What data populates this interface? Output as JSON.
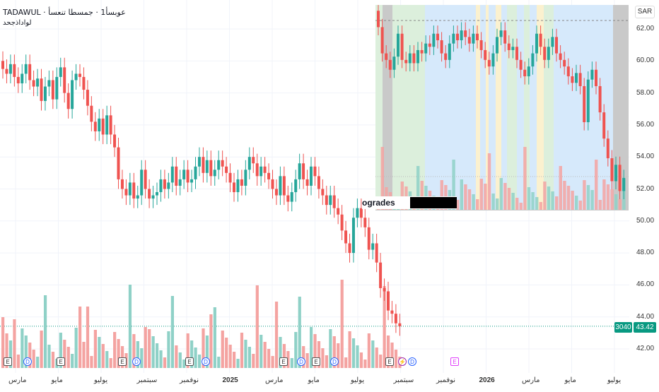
{
  "header": {
    "title": "TADAWUL · عوبسأ1 · جمسطا تنعسأ",
    "subtitle": "لواداذجحد"
  },
  "price_axis": {
    "currency": "SAR",
    "labels": [
      "62.00",
      "60.00",
      "58.00",
      "56.00",
      "54.00",
      "52.00",
      "50.00",
      "48.00",
      "46.00",
      "44.00",
      "42.00"
    ],
    "last_price": "43.42",
    "volume_badge": "3040"
  },
  "time_axis": {
    "labels": [
      {
        "text": "مارس",
        "year": false
      },
      {
        "text": "مايو",
        "year": false
      },
      {
        "text": "يوليو",
        "year": false
      },
      {
        "text": "سبتمبر",
        "year": false
      },
      {
        "text": "نوفمبر",
        "year": false
      },
      {
        "text": "2025",
        "year": true
      },
      {
        "text": "مارس",
        "year": false
      },
      {
        "text": "مايو",
        "year": false
      },
      {
        "text": "يوليو",
        "year": false
      },
      {
        "text": "سبتمبر",
        "year": false
      },
      {
        "text": "نوفمبر",
        "year": false
      },
      {
        "text": "2026",
        "year": true
      },
      {
        "text": "مارس",
        "year": false
      },
      {
        "text": "مايو",
        "year": false
      },
      {
        "text": "يوليو",
        "year": false
      }
    ]
  },
  "inset": {
    "caption": "ogrades"
  },
  "events": [
    {
      "type": "E",
      "glyph": "E"
    },
    {
      "type": "D",
      "glyph": "D"
    },
    {
      "type": "E",
      "glyph": "E"
    },
    {
      "type": "E",
      "glyph": "E"
    },
    {
      "type": "D",
      "glyph": "D"
    },
    {
      "type": "E",
      "glyph": "E"
    },
    {
      "type": "D",
      "glyph": "D"
    },
    {
      "type": "E",
      "glyph": "E"
    },
    {
      "type": "D",
      "glyph": "D"
    },
    {
      "type": "E",
      "glyph": "E"
    },
    {
      "type": "D",
      "glyph": "D"
    },
    {
      "type": "E",
      "glyph": "E"
    },
    {
      "type": "S",
      "glyph": "⚡"
    },
    {
      "type": "D",
      "glyph": "D"
    },
    {
      "type": "F",
      "glyph": "E"
    }
  ],
  "colors": {
    "up": "#26a69a",
    "down": "#ef5350",
    "vol_up": "#8fd1c7",
    "vol_down": "#f4a3a1",
    "grid": "#f0f3fa",
    "band_green": "#dcefdc",
    "band_blue": "#d6e9fb",
    "band_yellow": "#fbf1cf",
    "band_gray": "#c9c9c9"
  },
  "chart_data": {
    "type": "candlestick",
    "series_main": [
      {
        "o": 60.0,
        "c": 59.5
      },
      {
        "o": 59.5,
        "c": 59.2
      },
      {
        "o": 59.2,
        "c": 59.8
      },
      {
        "o": 59.8,
        "c": 59.0
      },
      {
        "o": 59.0,
        "c": 58.6
      },
      {
        "o": 58.6,
        "c": 59.2
      },
      {
        "o": 59.2,
        "c": 59.8
      },
      {
        "o": 59.8,
        "c": 58.8
      },
      {
        "o": 58.8,
        "c": 58.4
      },
      {
        "o": 58.4,
        "c": 58.9
      },
      {
        "o": 58.9,
        "c": 57.5
      },
      {
        "o": 57.5,
        "c": 58.4
      },
      {
        "o": 58.4,
        "c": 58.8
      },
      {
        "o": 58.8,
        "c": 57.6
      },
      {
        "o": 57.6,
        "c": 59.0
      },
      {
        "o": 59.0,
        "c": 59.6
      },
      {
        "o": 59.6,
        "c": 58.0
      },
      {
        "o": 58.0,
        "c": 57.0
      },
      {
        "o": 57.0,
        "c": 58.8
      },
      {
        "o": 58.8,
        "c": 59.2
      },
      {
        "o": 59.2,
        "c": 59.0
      },
      {
        "o": 59.0,
        "c": 58.2
      },
      {
        "o": 58.2,
        "c": 57.2
      },
      {
        "o": 57.2,
        "c": 56.2
      },
      {
        "o": 56.2,
        "c": 55.6
      },
      {
        "o": 55.6,
        "c": 56.4
      },
      {
        "o": 56.4,
        "c": 55.4
      },
      {
        "o": 55.4,
        "c": 56.6
      },
      {
        "o": 56.6,
        "c": 55.4
      },
      {
        "o": 55.4,
        "c": 54.6
      },
      {
        "o": 54.6,
        "c": 52.6
      },
      {
        "o": 52.6,
        "c": 52.0
      },
      {
        "o": 52.0,
        "c": 51.6
      },
      {
        "o": 51.6,
        "c": 52.4
      },
      {
        "o": 52.4,
        "c": 51.4
      },
      {
        "o": 51.4,
        "c": 51.6
      },
      {
        "o": 51.6,
        "c": 53.2
      },
      {
        "o": 53.2,
        "c": 52.0
      },
      {
        "o": 52.0,
        "c": 51.4
      },
      {
        "o": 51.4,
        "c": 51.6
      },
      {
        "o": 51.6,
        "c": 51.8
      },
      {
        "o": 51.8,
        "c": 52.6
      },
      {
        "o": 52.6,
        "c": 52.0
      },
      {
        "o": 52.0,
        "c": 52.4
      },
      {
        "o": 52.4,
        "c": 53.4
      },
      {
        "o": 53.4,
        "c": 52.2
      },
      {
        "o": 52.2,
        "c": 52.6
      },
      {
        "o": 52.6,
        "c": 53.2
      },
      {
        "o": 53.2,
        "c": 52.4
      },
      {
        "o": 52.4,
        "c": 52.6
      },
      {
        "o": 52.6,
        "c": 53.4
      },
      {
        "o": 53.4,
        "c": 54.0
      },
      {
        "o": 54.0,
        "c": 53.0
      },
      {
        "o": 53.0,
        "c": 53.8
      },
      {
        "o": 53.8,
        "c": 52.8
      },
      {
        "o": 52.8,
        "c": 53.2
      },
      {
        "o": 53.2,
        "c": 53.8
      },
      {
        "o": 53.8,
        "c": 53.4
      },
      {
        "o": 53.4,
        "c": 53.0
      },
      {
        "o": 53.0,
        "c": 52.4
      },
      {
        "o": 52.4,
        "c": 51.8
      },
      {
        "o": 51.8,
        "c": 52.6
      },
      {
        "o": 52.6,
        "c": 52.2
      },
      {
        "o": 52.2,
        "c": 53.2
      },
      {
        "o": 53.2,
        "c": 54.0
      },
      {
        "o": 54.0,
        "c": 53.6
      },
      {
        "o": 53.6,
        "c": 52.8
      },
      {
        "o": 52.8,
        "c": 53.4
      },
      {
        "o": 53.4,
        "c": 53.0
      },
      {
        "o": 53.0,
        "c": 52.6
      },
      {
        "o": 52.6,
        "c": 52.0
      },
      {
        "o": 52.0,
        "c": 51.6
      },
      {
        "o": 51.6,
        "c": 52.8
      },
      {
        "o": 52.8,
        "c": 51.6
      },
      {
        "o": 51.6,
        "c": 51.2
      },
      {
        "o": 51.2,
        "c": 51.8
      },
      {
        "o": 51.8,
        "c": 52.6
      },
      {
        "o": 52.6,
        "c": 53.6
      },
      {
        "o": 53.6,
        "c": 52.6
      },
      {
        "o": 52.6,
        "c": 52.2
      },
      {
        "o": 52.2,
        "c": 53.4
      },
      {
        "o": 53.4,
        "c": 52.8
      },
      {
        "o": 52.8,
        "c": 52.0
      },
      {
        "o": 52.0,
        "c": 51.6
      },
      {
        "o": 51.6,
        "c": 51.0
      },
      {
        "o": 51.0,
        "c": 51.6
      },
      {
        "o": 51.6,
        "c": 50.8
      },
      {
        "o": 50.8,
        "c": 50.4
      },
      {
        "o": 50.4,
        "c": 49.4
      },
      {
        "o": 49.4,
        "c": 48.6
      },
      {
        "o": 48.6,
        "c": 48.0
      },
      {
        "o": 48.0,
        "c": 50.2
      },
      {
        "o": 50.2,
        "c": 50.8
      },
      {
        "o": 50.8,
        "c": 50.2
      },
      {
        "o": 50.2,
        "c": 49.6
      },
      {
        "o": 49.6,
        "c": 48.2
      },
      {
        "o": 48.2,
        "c": 48.6
      },
      {
        "o": 48.6,
        "c": 47.4
      },
      {
        "o": 47.4,
        "c": 45.8
      },
      {
        "o": 45.8,
        "c": 45.6
      },
      {
        "o": 45.6,
        "c": 44.4
      },
      {
        "o": 44.4,
        "c": 44.2
      },
      {
        "o": 44.2,
        "c": 43.6
      },
      {
        "o": 43.6,
        "c": 43.42
      }
    ],
    "inset_series": [
      {
        "o": 63.0,
        "c": 62.0
      },
      {
        "o": 62.0,
        "c": 60.4
      },
      {
        "o": 60.4,
        "c": 60.0
      },
      {
        "o": 60.0,
        "c": 59.4
      },
      {
        "o": 59.4,
        "c": 60.2
      },
      {
        "o": 60.2,
        "c": 61.6
      },
      {
        "o": 61.6,
        "c": 60.0
      },
      {
        "o": 60.0,
        "c": 59.8
      },
      {
        "o": 59.8,
        "c": 60.4
      },
      {
        "o": 60.4,
        "c": 59.8
      },
      {
        "o": 59.8,
        "c": 60.6
      },
      {
        "o": 60.6,
        "c": 60.4
      },
      {
        "o": 60.4,
        "c": 61.0
      },
      {
        "o": 61.0,
        "c": 60.8
      },
      {
        "o": 60.8,
        "c": 61.6
      },
      {
        "o": 61.6,
        "c": 61.2
      },
      {
        "o": 61.2,
        "c": 60.4
      },
      {
        "o": 60.4,
        "c": 60.0
      },
      {
        "o": 60.0,
        "c": 61.0
      },
      {
        "o": 61.0,
        "c": 61.6
      },
      {
        "o": 61.6,
        "c": 61.2
      },
      {
        "o": 61.2,
        "c": 61.8
      },
      {
        "o": 61.8,
        "c": 61.4
      },
      {
        "o": 61.4,
        "c": 61.0
      },
      {
        "o": 61.0,
        "c": 61.6
      },
      {
        "o": 61.6,
        "c": 61.2
      },
      {
        "o": 61.2,
        "c": 60.6
      },
      {
        "o": 60.6,
        "c": 60.0
      },
      {
        "o": 60.0,
        "c": 59.6
      },
      {
        "o": 59.6,
        "c": 60.4
      },
      {
        "o": 60.4,
        "c": 61.4
      },
      {
        "o": 61.4,
        "c": 61.8
      },
      {
        "o": 61.8,
        "c": 61.0
      },
      {
        "o": 61.0,
        "c": 60.6
      },
      {
        "o": 60.6,
        "c": 60.8
      },
      {
        "o": 60.8,
        "c": 60.0
      },
      {
        "o": 60.0,
        "c": 59.4
      },
      {
        "o": 59.4,
        "c": 59.0
      },
      {
        "o": 59.0,
        "c": 59.6
      },
      {
        "o": 59.6,
        "c": 60.4
      },
      {
        "o": 60.4,
        "c": 61.6
      },
      {
        "o": 61.6,
        "c": 60.8
      },
      {
        "o": 60.8,
        "c": 60.0
      },
      {
        "o": 60.0,
        "c": 60.8
      },
      {
        "o": 60.8,
        "c": 61.4
      },
      {
        "o": 61.4,
        "c": 60.4
      },
      {
        "o": 60.4,
        "c": 60.0
      },
      {
        "o": 60.0,
        "c": 59.6
      },
      {
        "o": 59.6,
        "c": 59.0
      },
      {
        "o": 59.0,
        "c": 58.6
      },
      {
        "o": 58.6,
        "c": 59.2
      },
      {
        "o": 59.2,
        "c": 58.4
      },
      {
        "o": 58.4,
        "c": 56.2
      },
      {
        "o": 56.2,
        "c": 58.8
      },
      {
        "o": 58.8,
        "c": 59.4
      },
      {
        "o": 59.4,
        "c": 58.4
      },
      {
        "o": 58.4,
        "c": 56.8
      },
      {
        "o": 56.8,
        "c": 55.2
      },
      {
        "o": 55.2,
        "c": 54.0
      },
      {
        "o": 54.0,
        "c": 52.6
      },
      {
        "o": 52.6,
        "c": 53.6
      },
      {
        "o": 53.6,
        "c": 52.0
      },
      {
        "o": 52.0,
        "c": 52.8
      }
    ],
    "y_range": [
      41.0,
      63.0
    ]
  }
}
